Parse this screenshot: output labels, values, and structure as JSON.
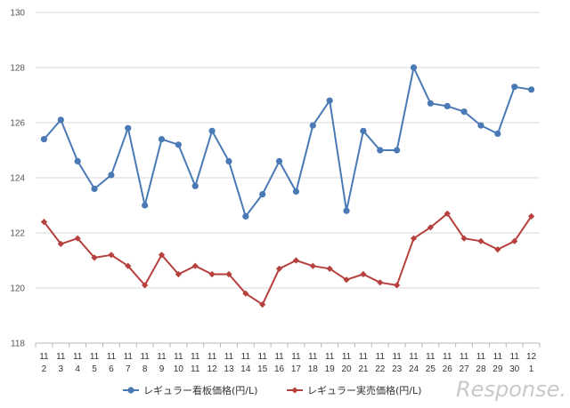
{
  "chart_data": {
    "type": "line",
    "categories": [
      [
        "11",
        "2"
      ],
      [
        "11",
        "3"
      ],
      [
        "11",
        "4"
      ],
      [
        "11",
        "5"
      ],
      [
        "11",
        "6"
      ],
      [
        "11",
        "7"
      ],
      [
        "11",
        "8"
      ],
      [
        "11",
        "9"
      ],
      [
        "11",
        "10"
      ],
      [
        "11",
        "11"
      ],
      [
        "11",
        "12"
      ],
      [
        "11",
        "13"
      ],
      [
        "11",
        "14"
      ],
      [
        "11",
        "15"
      ],
      [
        "11",
        "16"
      ],
      [
        "11",
        "17"
      ],
      [
        "11",
        "18"
      ],
      [
        "11",
        "19"
      ],
      [
        "11",
        "20"
      ],
      [
        "11",
        "21"
      ],
      [
        "11",
        "22"
      ],
      [
        "11",
        "23"
      ],
      [
        "11",
        "24"
      ],
      [
        "11",
        "25"
      ],
      [
        "11",
        "26"
      ],
      [
        "11",
        "27"
      ],
      [
        "11",
        "28"
      ],
      [
        "11",
        "29"
      ],
      [
        "11",
        "30"
      ],
      [
        "12",
        "1"
      ]
    ],
    "ylim": [
      118,
      130
    ],
    "yticks": [
      118,
      120,
      122,
      124,
      126,
      128,
      130
    ],
    "grid": true,
    "legend_position": "bottom",
    "series": [
      {
        "name": "レギュラー看板価格(円/L)",
        "color": "#4a7ab5",
        "marker": "circle",
        "values": [
          125.4,
          126.1,
          124.6,
          123.6,
          124.1,
          125.8,
          123.0,
          125.4,
          125.2,
          123.7,
          125.7,
          124.6,
          122.6,
          123.4,
          124.6,
          123.5,
          125.9,
          126.8,
          122.8,
          125.7,
          125.0,
          125.0,
          128.0,
          126.7,
          126.6,
          126.4,
          125.9,
          125.6,
          127.3,
          127.2
        ]
      },
      {
        "name": "レギュラー実売価格(円/L)",
        "color": "#b5403d",
        "marker": "diamond",
        "values": [
          122.4,
          121.6,
          121.8,
          121.1,
          121.2,
          120.8,
          120.1,
          121.2,
          120.5,
          120.8,
          120.5,
          120.5,
          119.8,
          119.4,
          120.7,
          121.0,
          120.8,
          120.7,
          120.3,
          120.5,
          120.2,
          120.1,
          121.8,
          122.2,
          122.7,
          121.8,
          121.7,
          121.4,
          121.7,
          122.6
        ]
      }
    ]
  },
  "watermark": {
    "text": "Response."
  }
}
